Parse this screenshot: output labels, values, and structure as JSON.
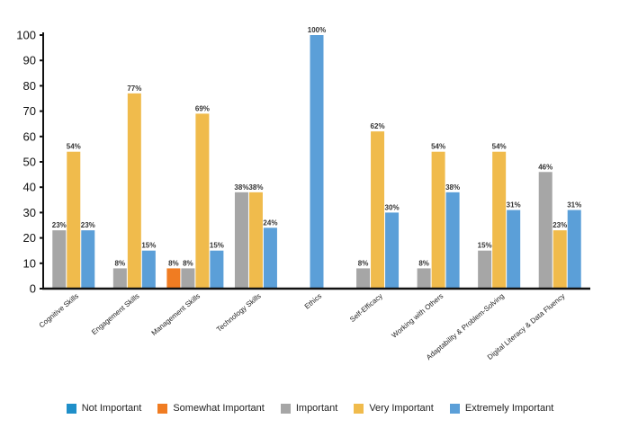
{
  "chart_data": {
    "type": "bar",
    "title": "",
    "xlabel": "",
    "ylabel": "",
    "ylim": [
      0,
      100
    ],
    "yticks": [
      0,
      10,
      20,
      30,
      40,
      50,
      60,
      70,
      80,
      90,
      100
    ],
    "categories": [
      "Cognitive Skills",
      "Engagement Skills",
      "Management Skills",
      "Technology Skills",
      "Ethics",
      "Self-Efficacy",
      "Working with Others",
      "Adaptability & Problem-Solving",
      "Digital Literacy & Data Fluency"
    ],
    "series": [
      {
        "name": "Not Important",
        "color": "#1f8fc9",
        "values": [
          0,
          0,
          0,
          0,
          0,
          0,
          0,
          0,
          0
        ]
      },
      {
        "name": "Somewhat Important",
        "color": "#f07c22",
        "values": [
          0,
          0,
          8,
          0,
          0,
          0,
          0,
          0,
          0
        ]
      },
      {
        "name": "Important",
        "color": "#a6a6a6",
        "values": [
          23,
          8,
          8,
          38,
          0,
          8,
          8,
          15,
          46
        ]
      },
      {
        "name": "Very Important",
        "color": "#f0bb4c",
        "values": [
          54,
          77,
          69,
          38,
          0,
          62,
          54,
          54,
          23
        ]
      },
      {
        "name": "Extremely Important",
        "color": "#5b9fd8",
        "values": [
          23,
          15,
          15,
          24,
          100,
          30,
          38,
          31,
          31
        ]
      }
    ],
    "label_suffix": "%",
    "legend_position": "bottom"
  }
}
